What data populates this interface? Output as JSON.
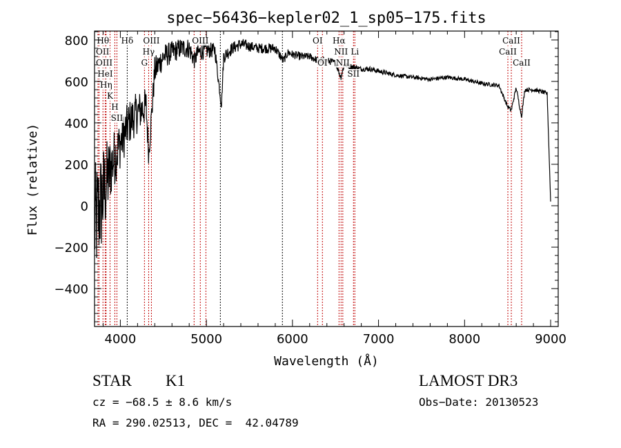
{
  "chart_data": {
    "type": "line",
    "title": "spec−56436−kepler02_1_sp05−175.fits",
    "xlabel": "Wavelength (Å)",
    "ylabel": "Flux (relative)",
    "xlim": [
      3700,
      9088
    ],
    "ylim": [
      -583,
      843
    ],
    "xticks": [
      4000,
      5000,
      6000,
      7000,
      8000,
      9000
    ],
    "xtick_labels": [
      "4000",
      "5000",
      "6000",
      "7000",
      "8000",
      "9000"
    ],
    "yticks": [
      -400,
      -200,
      0,
      200,
      400,
      600,
      800
    ],
    "ytick_labels": [
      "−400",
      "−200",
      "0",
      "200",
      "400",
      "600",
      "800"
    ],
    "grid": false,
    "series": [
      {
        "name": "spectrum",
        "x": [
          3700,
          3800,
          3900,
          4000,
          4100,
          4200,
          4300,
          4330,
          4400,
          4500,
          4600,
          4700,
          4800,
          4861,
          4900,
          5000,
          5100,
          5175,
          5200,
          5300,
          5400,
          5500,
          5600,
          5700,
          5800,
          5893,
          5950,
          6000,
          6100,
          6200,
          6300,
          6400,
          6500,
          6563,
          6600,
          6700,
          6800,
          6900,
          7000,
          7200,
          7400,
          7600,
          7800,
          8000,
          8200,
          8400,
          8498,
          8542,
          8600,
          8662,
          8700,
          8800,
          8900,
          8960,
          9000
        ],
        "y": [
          -100,
          50,
          200,
          300,
          400,
          450,
          480,
          250,
          650,
          720,
          740,
          760,
          760,
          700,
          740,
          750,
          750,
          480,
          720,
          760,
          780,
          770,
          760,
          760,
          760,
          700,
          740,
          730,
          720,
          720,
          700,
          700,
          690,
          620,
          680,
          670,
          660,
          660,
          650,
          630,
          620,
          610,
          620,
          610,
          590,
          580,
          480,
          460,
          570,
          430,
          560,
          560,
          550,
          540,
          20
        ],
        "noise": [
          300,
          250,
          150,
          120,
          110,
          100,
          90,
          60,
          70,
          60,
          55,
          50,
          50,
          40,
          45,
          40,
          35,
          20,
          35,
          30,
          30,
          25,
          25,
          25,
          25,
          20,
          20,
          20,
          20,
          18,
          18,
          18,
          15,
          15,
          15,
          15,
          12,
          12,
          12,
          10,
          10,
          10,
          10,
          10,
          10,
          10,
          10,
          10,
          10,
          10,
          10,
          10,
          10,
          10,
          0
        ]
      }
    ],
    "lines": [
      {
        "wave": 3753,
        "color": "#c00000",
        "label": "OII",
        "row": 2
      },
      {
        "wave": 3740,
        "color": "#c00000",
        "label": "OIII",
        "row": 3
      },
      {
        "wave": 3798,
        "color": "#c00000",
        "label": "Hθ",
        "row": 1
      },
      {
        "wave": 3824,
        "color": "#c00000",
        "label": "HeI",
        "row": 2
      },
      {
        "wave": 3835,
        "color": "#c00000",
        "label": "Hη",
        "row": 3
      },
      {
        "wave": 3880,
        "color": "#c00000",
        "label": "K",
        "row": 1
      },
      {
        "wave": 3936,
        "color": "#c00000",
        "label": "H",
        "row": 3
      },
      {
        "wave": 3960,
        "color": "#c00000",
        "label": "SII",
        "row": 2
      },
      {
        "wave": 4080,
        "color": "#000000",
        "label": "Hδ",
        "row": 1
      },
      {
        "wave": 4280,
        "color": "#c00000",
        "label": "G",
        "row": 3
      },
      {
        "wave": 4329,
        "color": "#c00000",
        "label": "Hγ",
        "row": 2
      },
      {
        "wave": 4361,
        "color": "#c00000",
        "label": "OIII",
        "row": 1
      },
      {
        "wave": 4857,
        "color": "#c00000",
        "label": "",
        "row": 0
      },
      {
        "wave": 4929,
        "color": "#c00000",
        "label": "OIII",
        "row": 1
      },
      {
        "wave": 4994,
        "color": "#c00000",
        "label": "",
        "row": 0
      },
      {
        "wave": 5162,
        "color": "#000000",
        "label": "",
        "row": 0
      },
      {
        "wave": 5883,
        "color": "#000000",
        "label": "",
        "row": 0
      },
      {
        "wave": 6292,
        "color": "#c00000",
        "label": "OI",
        "row": 1
      },
      {
        "wave": 6348,
        "color": "#c00000",
        "label": "OI",
        "row": 3
      },
      {
        "wave": 6541,
        "color": "#c00000",
        "label": "Hα",
        "row": 1
      },
      {
        "wave": 6565,
        "color": "#c00000",
        "label": "NII",
        "row": 2
      },
      {
        "wave": 6585,
        "color": "#c00000",
        "label": "NII",
        "row": 3
      },
      {
        "wave": 6709,
        "color": "#c00000",
        "label": "SII",
        "row": 1
      },
      {
        "wave": 6725,
        "color": "#c00000",
        "label": "Li",
        "row": 2
      },
      {
        "wave": 8503,
        "color": "#c00000",
        "label": "CaII",
        "row": 2
      },
      {
        "wave": 8543,
        "color": "#c00000",
        "label": "CaII",
        "row": 1
      },
      {
        "wave": 8663,
        "color": "#c00000",
        "label": "CaII",
        "row": 3
      }
    ]
  },
  "info": {
    "class": "STAR",
    "subclass": "K1",
    "survey": "LAMOST DR3",
    "cz": "cz = −68.5 ± 8.6 km/s",
    "obs_date": "Obs−Date: 20130523",
    "coords": "RA = 290.02513, DEC =  42.04789"
  }
}
